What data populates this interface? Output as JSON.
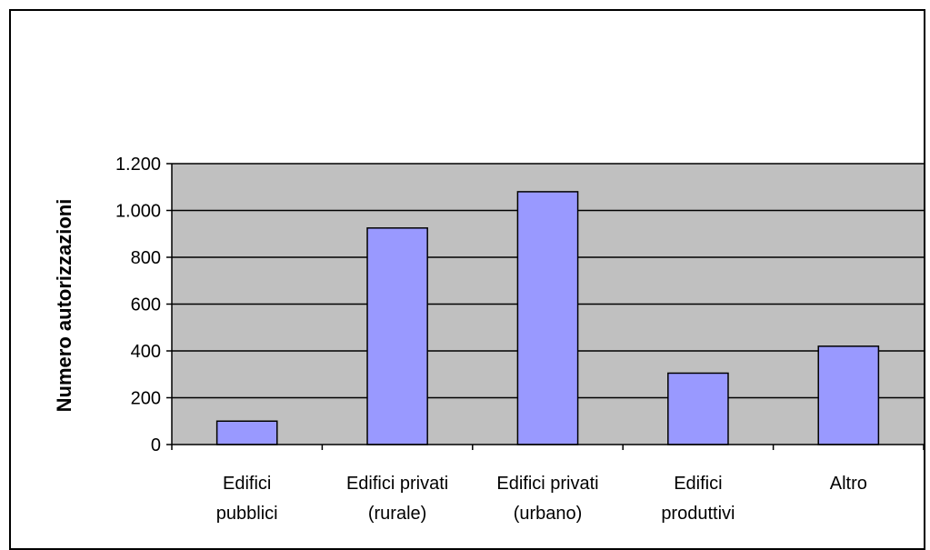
{
  "chart_data": {
    "type": "bar",
    "categories": [
      [
        "Edifici",
        "pubblici"
      ],
      [
        "Edifici privati",
        "(rurale)"
      ],
      [
        "Edifici privati",
        "(urbano)"
      ],
      [
        "Edifici",
        "produttivi"
      ],
      [
        "Altro"
      ]
    ],
    "values": [
      100,
      925,
      1080,
      305,
      420
    ],
    "ylabel": "Numero autorizzazioni",
    "xlabel": "",
    "title": "",
    "ylim": [
      0,
      1200
    ],
    "yticks": [
      0,
      200,
      400,
      600,
      800,
      1000,
      1200
    ],
    "ytick_labels": [
      "0",
      "200",
      "400",
      "600",
      "800",
      "1.000",
      "1.200"
    ],
    "grid": true,
    "legend": "none",
    "colors": {
      "bar_fill": "#9999ff",
      "bar_stroke": "#000000",
      "plot_background": "#c0c0c0",
      "gridline": "#000000",
      "page_background": "#ffffff"
    }
  }
}
